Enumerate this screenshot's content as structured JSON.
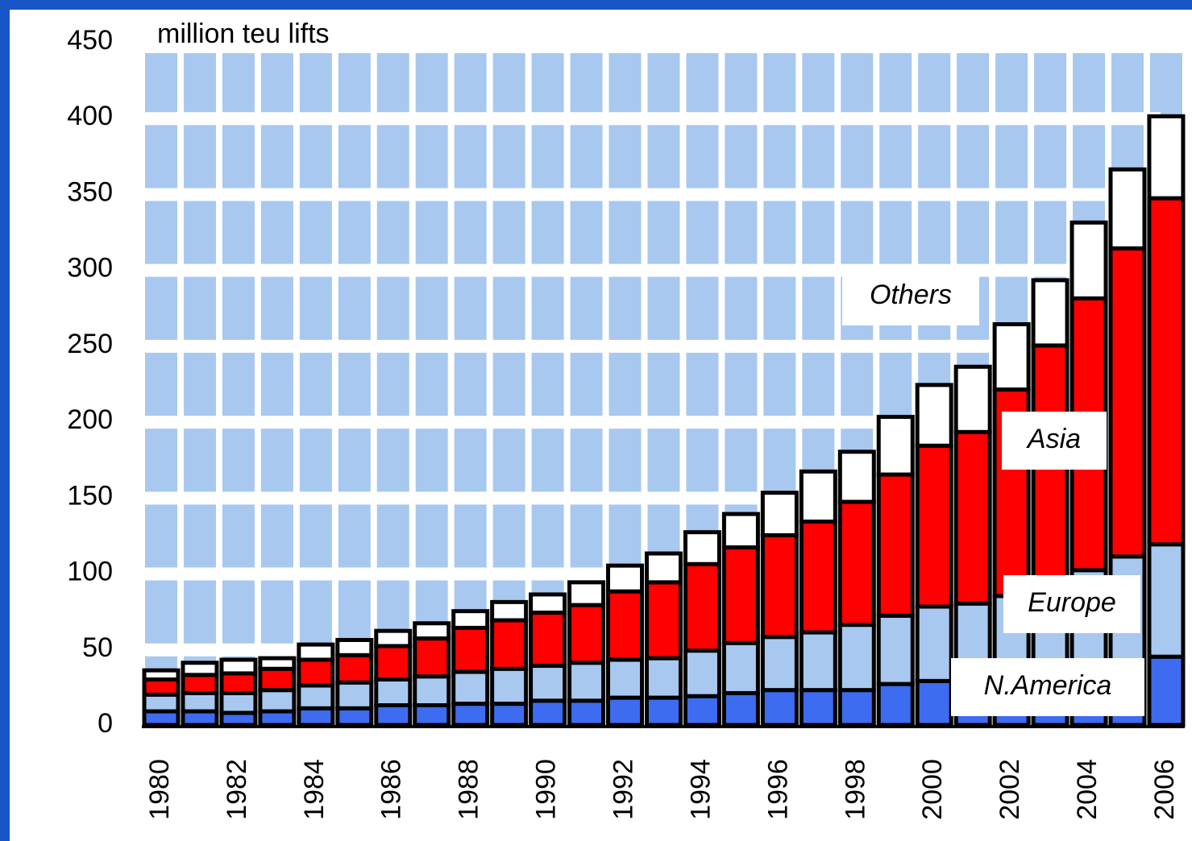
{
  "chart_data": {
    "type": "stacked_bar",
    "ylabel": "million teu lifts",
    "categories": [
      "1980",
      null,
      "1982",
      null,
      "1984",
      null,
      "1986",
      null,
      "1988",
      null,
      "1990",
      null,
      "1992",
      null,
      "1994",
      null,
      "1996",
      null,
      "1998",
      null,
      "2000",
      null,
      "2002",
      null,
      "2004",
      null,
      "2006"
    ],
    "series": [
      {
        "name": "N.America",
        "color": "#3d6cf0",
        "values": [
          9,
          9,
          8,
          9,
          11,
          11,
          13,
          13,
          14,
          14,
          16,
          16,
          18,
          18,
          19,
          21,
          23,
          23,
          23,
          27,
          29,
          30,
          33,
          36,
          40,
          42,
          45
        ]
      },
      {
        "name": "Europe",
        "color": "#a8c8f0",
        "values": [
          11,
          12,
          13,
          14,
          15,
          17,
          17,
          19,
          21,
          23,
          23,
          25,
          25,
          26,
          30,
          33,
          35,
          38,
          43,
          45,
          49,
          50,
          52,
          56,
          62,
          69,
          74
        ]
      },
      {
        "name": "Asia",
        "color": "#ff0000",
        "values": [
          10,
          12,
          13,
          14,
          17,
          18,
          22,
          25,
          29,
          32,
          35,
          38,
          45,
          50,
          57,
          63,
          67,
          73,
          81,
          93,
          106,
          113,
          136,
          158,
          179,
          203,
          228
        ]
      },
      {
        "name": "Others",
        "color": "#ffffff",
        "values": [
          6,
          8,
          9,
          7,
          10,
          10,
          10,
          10,
          11,
          12,
          12,
          15,
          17,
          19,
          21,
          22,
          28,
          33,
          33,
          38,
          40,
          43,
          43,
          43,
          50,
          52,
          54
        ]
      }
    ],
    "ylim": [
      0,
      450
    ],
    "yticks": [
      0,
      50,
      100,
      150,
      200,
      250,
      300,
      350,
      400,
      450
    ]
  }
}
